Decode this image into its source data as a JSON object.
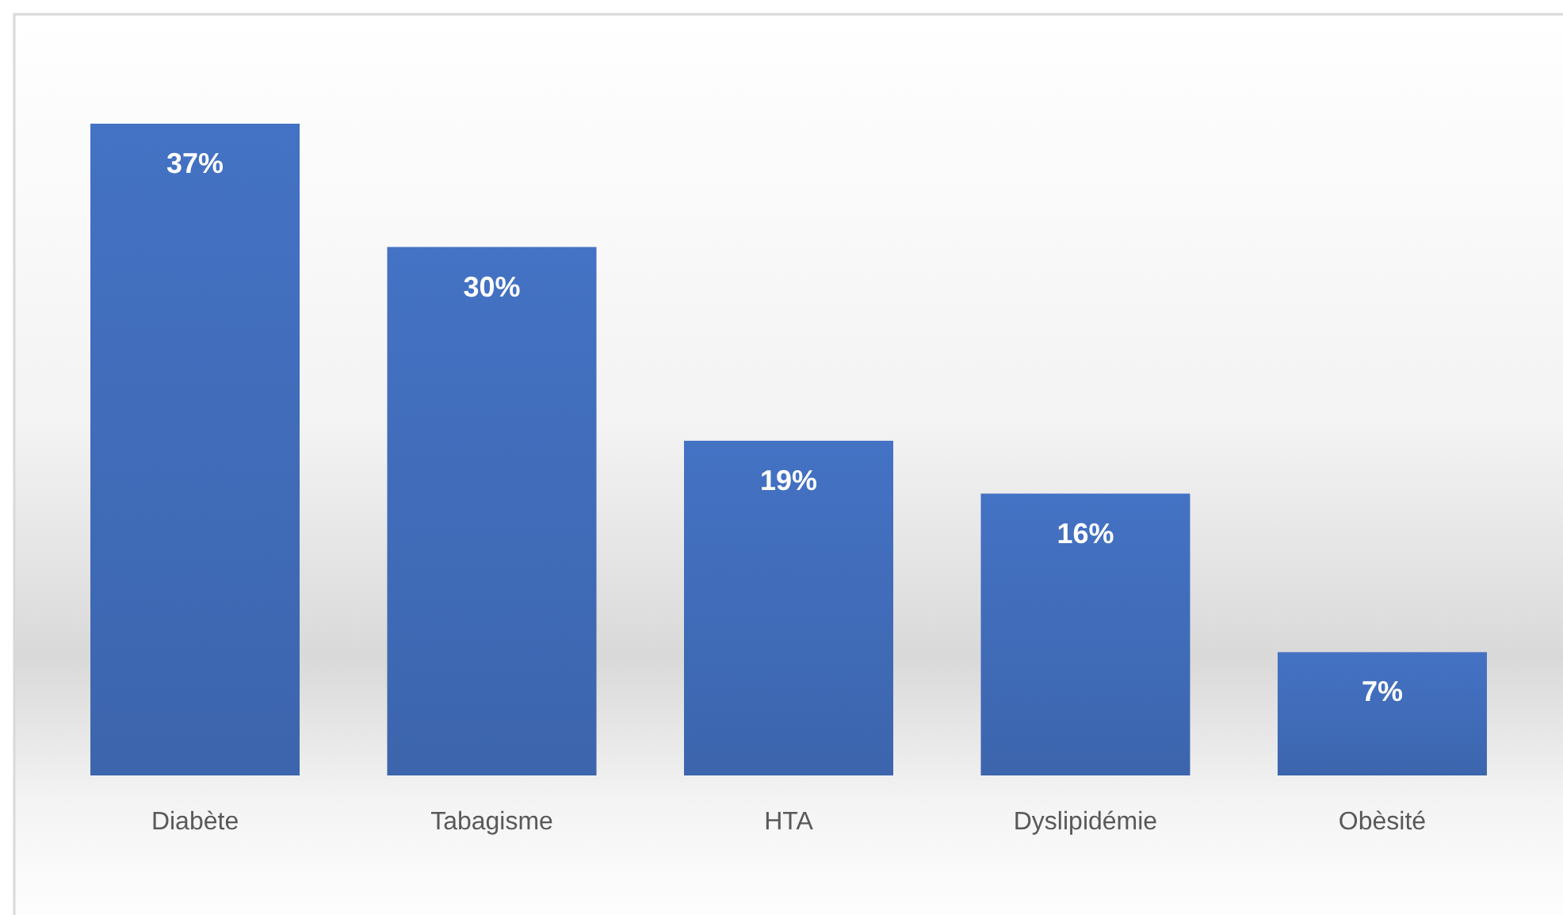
{
  "chart_data": {
    "type": "bar",
    "categories": [
      "Diabète",
      "Tabagisme",
      "HTA",
      "Dyslipidémie",
      "Obèsité"
    ],
    "values": [
      37,
      30,
      19,
      16,
      7
    ],
    "color": "#4472c4",
    "value_labels": [
      "37%",
      "30%",
      "19%",
      "16%",
      "7%"
    ]
  }
}
